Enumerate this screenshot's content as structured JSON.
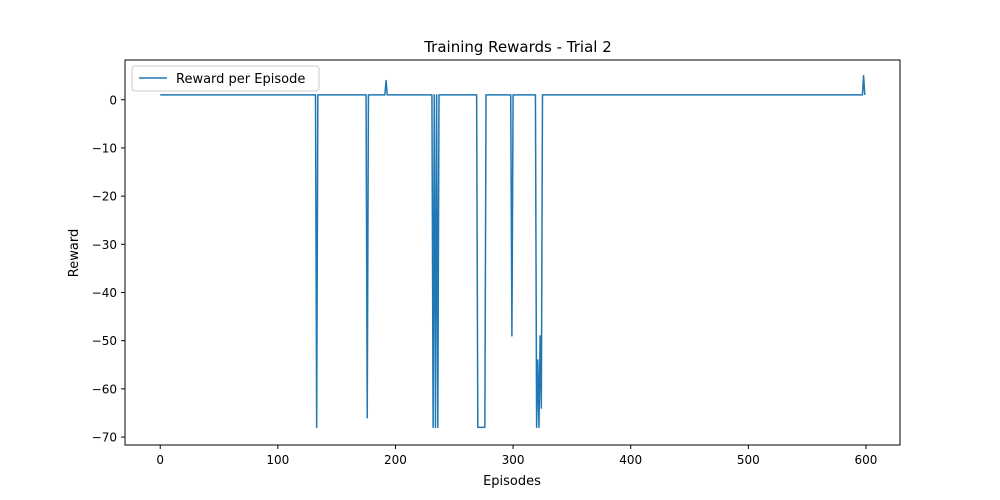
{
  "chart_data": {
    "type": "line",
    "title": "Training Rewards - Trial 2",
    "xlabel": "Episodes",
    "ylabel": "Reward",
    "xlim": [
      -29.95,
      628.95
    ],
    "ylim": [
      -71.65,
      8.25
    ],
    "x_ticks": [
      0,
      100,
      200,
      300,
      400,
      500,
      600
    ],
    "y_ticks": [
      0,
      -10,
      -20,
      -30,
      -40,
      -50,
      -60,
      -70
    ],
    "grid": false,
    "legend": {
      "placement": "upper-left"
    },
    "series": [
      {
        "name": "Reward per Episode",
        "color": "#1f77b4",
        "x": [
          0,
          132,
          133,
          134,
          175,
          176,
          177,
          191,
          192,
          193,
          194,
          231,
          232,
          233,
          234,
          235,
          236,
          237,
          238,
          269,
          270,
          276,
          277,
          298,
          299,
          300,
          301,
          319,
          320,
          321,
          322,
          323,
          324,
          325,
          326,
          327,
          597,
          598,
          599
        ],
        "y": [
          1,
          1,
          -68,
          1,
          1,
          -66,
          1,
          1,
          4,
          1,
          1,
          1,
          -68,
          1,
          -68,
          1,
          -68,
          1,
          1,
          1,
          -68,
          -68,
          1,
          1,
          -49,
          1,
          1,
          1,
          -68,
          -54,
          -68,
          -49,
          -64,
          1,
          1,
          1,
          1,
          5,
          1
        ]
      }
    ]
  }
}
